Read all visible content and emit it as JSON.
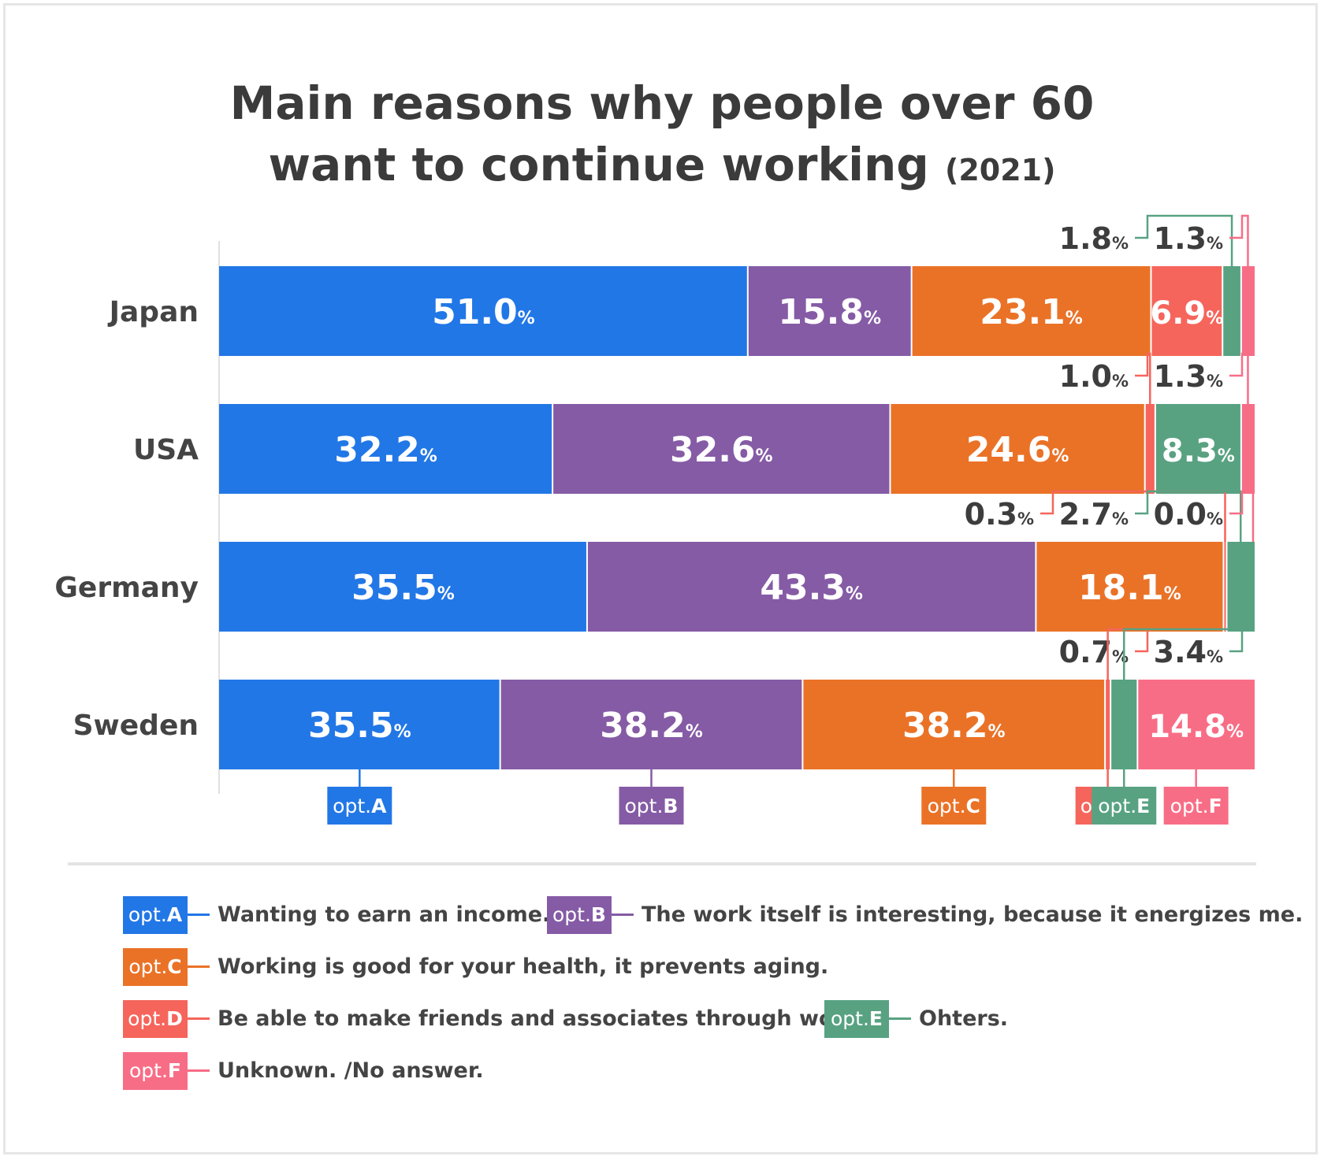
{
  "title": {
    "line1": "Main reasons why people over 60",
    "line2": "want to continue working",
    "year": "(2021)"
  },
  "options": [
    {
      "key": "A",
      "color": "#2277e6",
      "desc": "Wanting to earn an income."
    },
    {
      "key": "B",
      "color": "#855ba5",
      "desc": "The work itself is interesting, because it energizes me."
    },
    {
      "key": "C",
      "color": "#ea7227",
      "desc": "Working is good for your health, it prevents aging."
    },
    {
      "key": "D",
      "color": "#f5655c",
      "desc": "Be able to make friends and associates through work."
    },
    {
      "key": "E",
      "color": "#58a282",
      "desc": "Ohters."
    },
    {
      "key": "F",
      "color": "#f86d86",
      "desc": "Unknown. /No answer."
    }
  ],
  "badge_prefix": "opt.",
  "chart_data": {
    "type": "bar",
    "orientation": "horizontal",
    "stacked": true,
    "title": "Main reasons why people over 60 want to continue working (2021)",
    "unit": "%",
    "categories": [
      "Japan",
      "USA",
      "Germany",
      "Sweden"
    ],
    "series": [
      {
        "name": "opt.A",
        "values": [
          51.0,
          32.2,
          35.5,
          35.5
        ]
      },
      {
        "name": "opt.B",
        "values": [
          15.8,
          32.6,
          43.3,
          38.2
        ]
      },
      {
        "name": "opt.C",
        "values": [
          23.1,
          24.6,
          18.1,
          38.2
        ]
      },
      {
        "name": "opt.D",
        "values": [
          6.9,
          1.0,
          0.3,
          0.7
        ]
      },
      {
        "name": "opt.E",
        "values": [
          1.8,
          8.3,
          2.7,
          3.4
        ]
      },
      {
        "name": "opt.F",
        "values": [
          1.3,
          1.3,
          0.0,
          14.8
        ]
      }
    ],
    "labels": [
      [
        "51.0",
        "15.8",
        "23.1",
        "6.9",
        "1.8",
        "1.3"
      ],
      [
        "32.2",
        "32.6",
        "24.6",
        "1.0",
        "8.3",
        "1.3"
      ],
      [
        "35.5",
        "43.3",
        "18.1",
        "0.3",
        "2.7",
        "0.0"
      ],
      [
        "35.5",
        "38.2",
        "38.2",
        "0.7",
        "3.4",
        "14.8"
      ]
    ],
    "grid": false
  }
}
